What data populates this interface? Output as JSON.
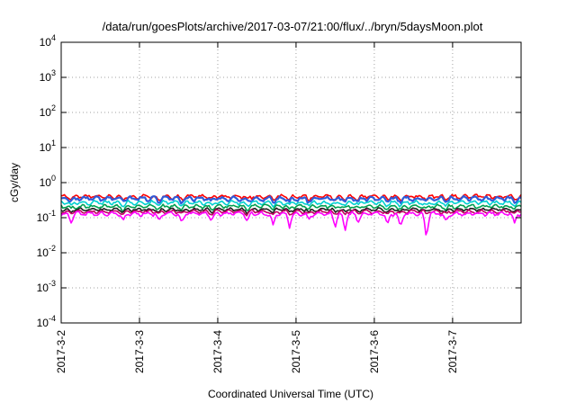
{
  "chart_data": {
    "type": "line",
    "title": "/data/run/goesPlots/archive/2017-03-07/21:00/flux/../bryn/5daysMoon.plot",
    "xlabel": "Coordinated Universal Time (UTC)",
    "ylabel": "cGy/day",
    "yscale": "log",
    "ylim": [
      0.0001,
      10000
    ],
    "xlim": [
      "2017-03-02T00:00",
      "2017-03-07T21:00"
    ],
    "grid": true,
    "legend": "none",
    "x_ticks": [
      {
        "x": "2017-03-02",
        "label": "2017-3-2"
      },
      {
        "x": "2017-03-03",
        "label": "2017-3-3"
      },
      {
        "x": "2017-03-04",
        "label": "2017-3-4"
      },
      {
        "x": "2017-03-05",
        "label": "2017-3-5"
      },
      {
        "x": "2017-03-06",
        "label": "2017-3-6"
      },
      {
        "x": "2017-03-07",
        "label": "2017-3-7"
      }
    ],
    "y_ticks": [
      {
        "y": 0.0001,
        "base": "10",
        "exp": "-4"
      },
      {
        "y": 0.001,
        "base": "10",
        "exp": "-3"
      },
      {
        "y": 0.01,
        "base": "10",
        "exp": "-2"
      },
      {
        "y": 0.1,
        "base": "10",
        "exp": "-1"
      },
      {
        "y": 1,
        "base": "10",
        "exp": "0"
      },
      {
        "y": 10,
        "base": "10",
        "exp": "1"
      },
      {
        "y": 100,
        "base": "10",
        "exp": "2"
      },
      {
        "y": 1000,
        "base": "10",
        "exp": "3"
      },
      {
        "y": 10000,
        "base": "10",
        "exp": "4"
      }
    ],
    "series": [
      {
        "color": "#ff0000",
        "base": 0.4,
        "amp": 0.06,
        "phase": 0.3
      },
      {
        "color": "#2f5bd8",
        "base": 0.35,
        "amp": 0.06,
        "phase": 1.1
      },
      {
        "color": "#00d0d0",
        "base": 0.27,
        "amp": 0.04,
        "phase": 2.0
      },
      {
        "color": "#00a050",
        "base": 0.21,
        "amp": 0.03,
        "phase": 2.7
      },
      {
        "color": "#202020",
        "base": 0.17,
        "amp": 0.02,
        "phase": 3.4
      },
      {
        "color": "#c00060",
        "base": 0.15,
        "amp": 0.02,
        "phase": 4.1
      },
      {
        "color": "#ff00ff",
        "base": 0.13,
        "amp": 0.02,
        "phase": 5.0
      }
    ],
    "dips": [
      {
        "x": "2017-03-02T03:00",
        "y": 0.07
      },
      {
        "x": "2017-03-02T19:00",
        "y": 0.08
      },
      {
        "x": "2017-03-03T06:00",
        "y": 0.08
      },
      {
        "x": "2017-03-03T13:00",
        "y": 0.07
      },
      {
        "x": "2017-03-03T22:00",
        "y": 0.08
      },
      {
        "x": "2017-03-04T09:00",
        "y": 0.08
      },
      {
        "x": "2017-03-04T17:00",
        "y": 0.06
      },
      {
        "x": "2017-03-04T22:00",
        "y": 0.05
      },
      {
        "x": "2017-03-05T04:00",
        "y": 0.09
      },
      {
        "x": "2017-03-05T12:00",
        "y": 0.05
      },
      {
        "x": "2017-03-05T15:00",
        "y": 0.035
      },
      {
        "x": "2017-03-05T19:00",
        "y": 0.07
      },
      {
        "x": "2017-03-06T04:00",
        "y": 0.06
      },
      {
        "x": "2017-03-06T08:00",
        "y": 0.05
      },
      {
        "x": "2017-03-06T16:00",
        "y": 0.015
      },
      {
        "x": "2017-03-06T22:00",
        "y": 0.08
      },
      {
        "x": "2017-03-07T19:00",
        "y": 0.07
      }
    ]
  }
}
